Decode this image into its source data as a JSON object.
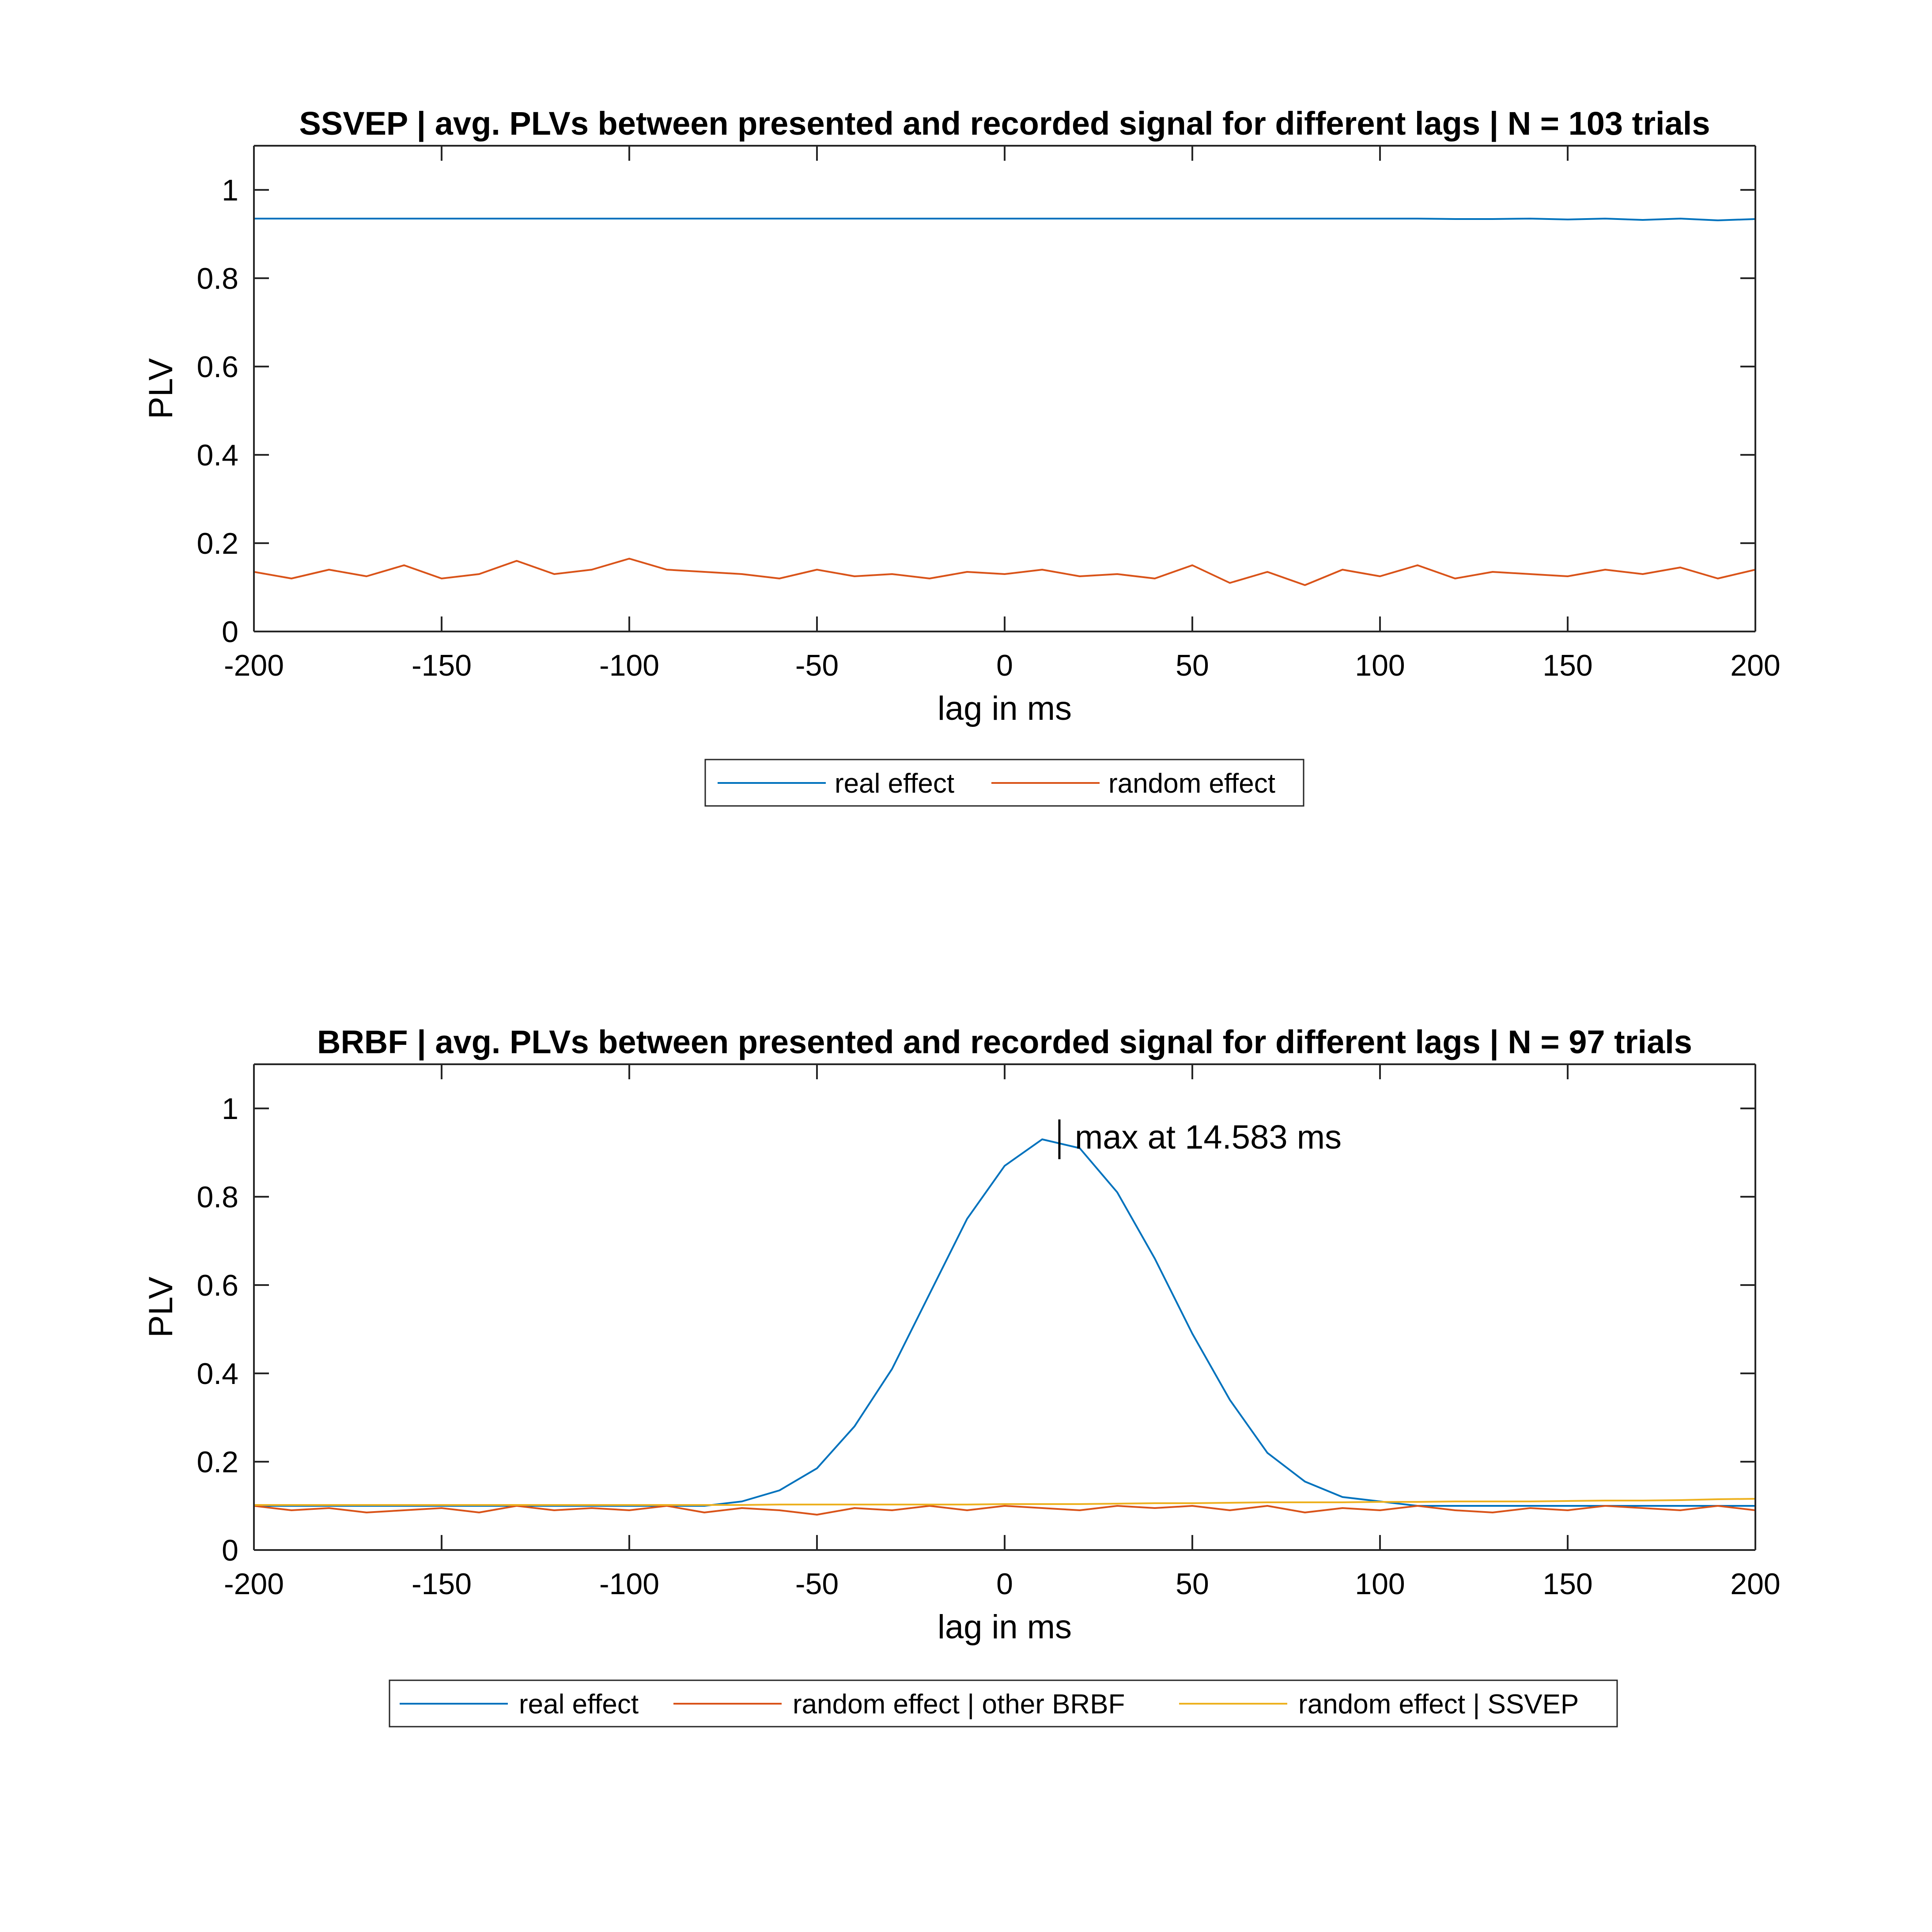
{
  "chart_data": [
    {
      "type": "line",
      "title": "SSVEP | avg. PLVs between presented and recorded signal for different lags | N = 103 trials",
      "xlabel": "lag in ms",
      "ylabel": "PLV",
      "xlim": [
        -200,
        200
      ],
      "ylim": [
        0,
        1.1
      ],
      "xticks": [
        -200,
        -150,
        -100,
        -50,
        0,
        50,
        100,
        150,
        200
      ],
      "xtick_labels": [
        "-200",
        "-150",
        "-100",
        "-50",
        "0",
        "50",
        "100",
        "150",
        "200"
      ],
      "yticks": [
        0,
        0.2,
        0.4,
        0.6,
        0.8,
        1
      ],
      "ytick_labels": [
        "0",
        "0.2",
        "0.4",
        "0.6",
        "0.8",
        "1"
      ],
      "grid": false,
      "legend_position": "bottom-outside",
      "x": [
        -200,
        -190,
        -180,
        -170,
        -160,
        -150,
        -140,
        -130,
        -120,
        -110,
        -100,
        -90,
        -80,
        -70,
        -60,
        -50,
        -40,
        -30,
        -20,
        -10,
        0,
        10,
        20,
        30,
        40,
        50,
        60,
        70,
        80,
        90,
        100,
        110,
        120,
        130,
        140,
        150,
        160,
        170,
        180,
        190,
        200
      ],
      "series": [
        {
          "name": "real effect",
          "color": "#0072BD",
          "values": [
            0.935,
            0.935,
            0.935,
            0.935,
            0.935,
            0.935,
            0.935,
            0.935,
            0.935,
            0.935,
            0.935,
            0.935,
            0.935,
            0.935,
            0.935,
            0.935,
            0.935,
            0.935,
            0.935,
            0.935,
            0.935,
            0.935,
            0.935,
            0.935,
            0.935,
            0.935,
            0.935,
            0.935,
            0.935,
            0.935,
            0.935,
            0.935,
            0.934,
            0.934,
            0.935,
            0.933,
            0.935,
            0.932,
            0.935,
            0.931,
            0.934
          ]
        },
        {
          "name": "random effect",
          "color": "#D95319",
          "values": [
            0.135,
            0.12,
            0.14,
            0.125,
            0.15,
            0.12,
            0.13,
            0.16,
            0.13,
            0.14,
            0.165,
            0.14,
            0.135,
            0.13,
            0.12,
            0.14,
            0.125,
            0.13,
            0.12,
            0.135,
            0.13,
            0.14,
            0.125,
            0.13,
            0.12,
            0.15,
            0.11,
            0.135,
            0.105,
            0.14,
            0.125,
            0.15,
            0.12,
            0.135,
            0.13,
            0.125,
            0.14,
            0.13,
            0.145,
            0.12,
            0.14
          ]
        }
      ]
    },
    {
      "type": "line",
      "title": "BRBF | avg. PLVs between presented and recorded signal for different lags | N = 97 trials",
      "xlabel": "lag in ms",
      "ylabel": "PLV",
      "xlim": [
        -200,
        200
      ],
      "ylim": [
        0,
        1.1
      ],
      "xticks": [
        -200,
        -150,
        -100,
        -50,
        0,
        50,
        100,
        150,
        200
      ],
      "xtick_labels": [
        "-200",
        "-150",
        "-100",
        "-50",
        "0",
        "50",
        "100",
        "150",
        "200"
      ],
      "yticks": [
        0,
        0.2,
        0.4,
        0.6,
        0.8,
        1
      ],
      "ytick_labels": [
        "0",
        "0.2",
        "0.4",
        "0.6",
        "0.8",
        "1"
      ],
      "grid": false,
      "legend_position": "bottom-outside",
      "annotation": {
        "text": "max at 14.583 ms",
        "x": 14.583,
        "y": 0.935
      },
      "x": [
        -200,
        -190,
        -180,
        -170,
        -160,
        -150,
        -140,
        -130,
        -120,
        -110,
        -100,
        -90,
        -80,
        -70,
        -60,
        -50,
        -40,
        -30,
        -20,
        -10,
        0,
        10,
        20,
        30,
        40,
        50,
        60,
        70,
        80,
        90,
        100,
        110,
        120,
        130,
        140,
        150,
        160,
        170,
        180,
        190,
        200
      ],
      "series": [
        {
          "name": "real effect",
          "color": "#0072BD",
          "values": [
            0.1,
            0.1,
            0.1,
            0.1,
            0.1,
            0.1,
            0.1,
            0.1,
            0.1,
            0.1,
            0.1,
            0.1,
            0.1,
            0.11,
            0.135,
            0.185,
            0.28,
            0.41,
            0.58,
            0.75,
            0.87,
            0.93,
            0.91,
            0.81,
            0.66,
            0.49,
            0.34,
            0.22,
            0.155,
            0.12,
            0.11,
            0.1,
            0.1,
            0.1,
            0.1,
            0.1,
            0.1,
            0.1,
            0.1,
            0.1,
            0.1
          ]
        },
        {
          "name": "random effect | other BRBF",
          "color": "#D95319",
          "values": [
            0.1,
            0.09,
            0.095,
            0.085,
            0.09,
            0.095,
            0.085,
            0.1,
            0.09,
            0.095,
            0.09,
            0.1,
            0.085,
            0.095,
            0.09,
            0.08,
            0.095,
            0.09,
            0.1,
            0.09,
            0.1,
            0.095,
            0.09,
            0.1,
            0.095,
            0.1,
            0.09,
            0.1,
            0.085,
            0.095,
            0.09,
            0.1,
            0.09,
            0.085,
            0.095,
            0.09,
            0.1,
            0.095,
            0.09,
            0.1,
            0.09
          ]
        },
        {
          "name": "random effect | SSVEP",
          "color": "#EDB120",
          "values": [
            0.102,
            0.102,
            0.102,
            0.102,
            0.102,
            0.102,
            0.102,
            0.102,
            0.102,
            0.102,
            0.102,
            0.102,
            0.102,
            0.102,
            0.103,
            0.103,
            0.103,
            0.103,
            0.103,
            0.103,
            0.104,
            0.104,
            0.104,
            0.105,
            0.106,
            0.106,
            0.107,
            0.108,
            0.108,
            0.108,
            0.109,
            0.109,
            0.11,
            0.11,
            0.11,
            0.111,
            0.112,
            0.112,
            0.113,
            0.115,
            0.116
          ]
        }
      ]
    }
  ]
}
